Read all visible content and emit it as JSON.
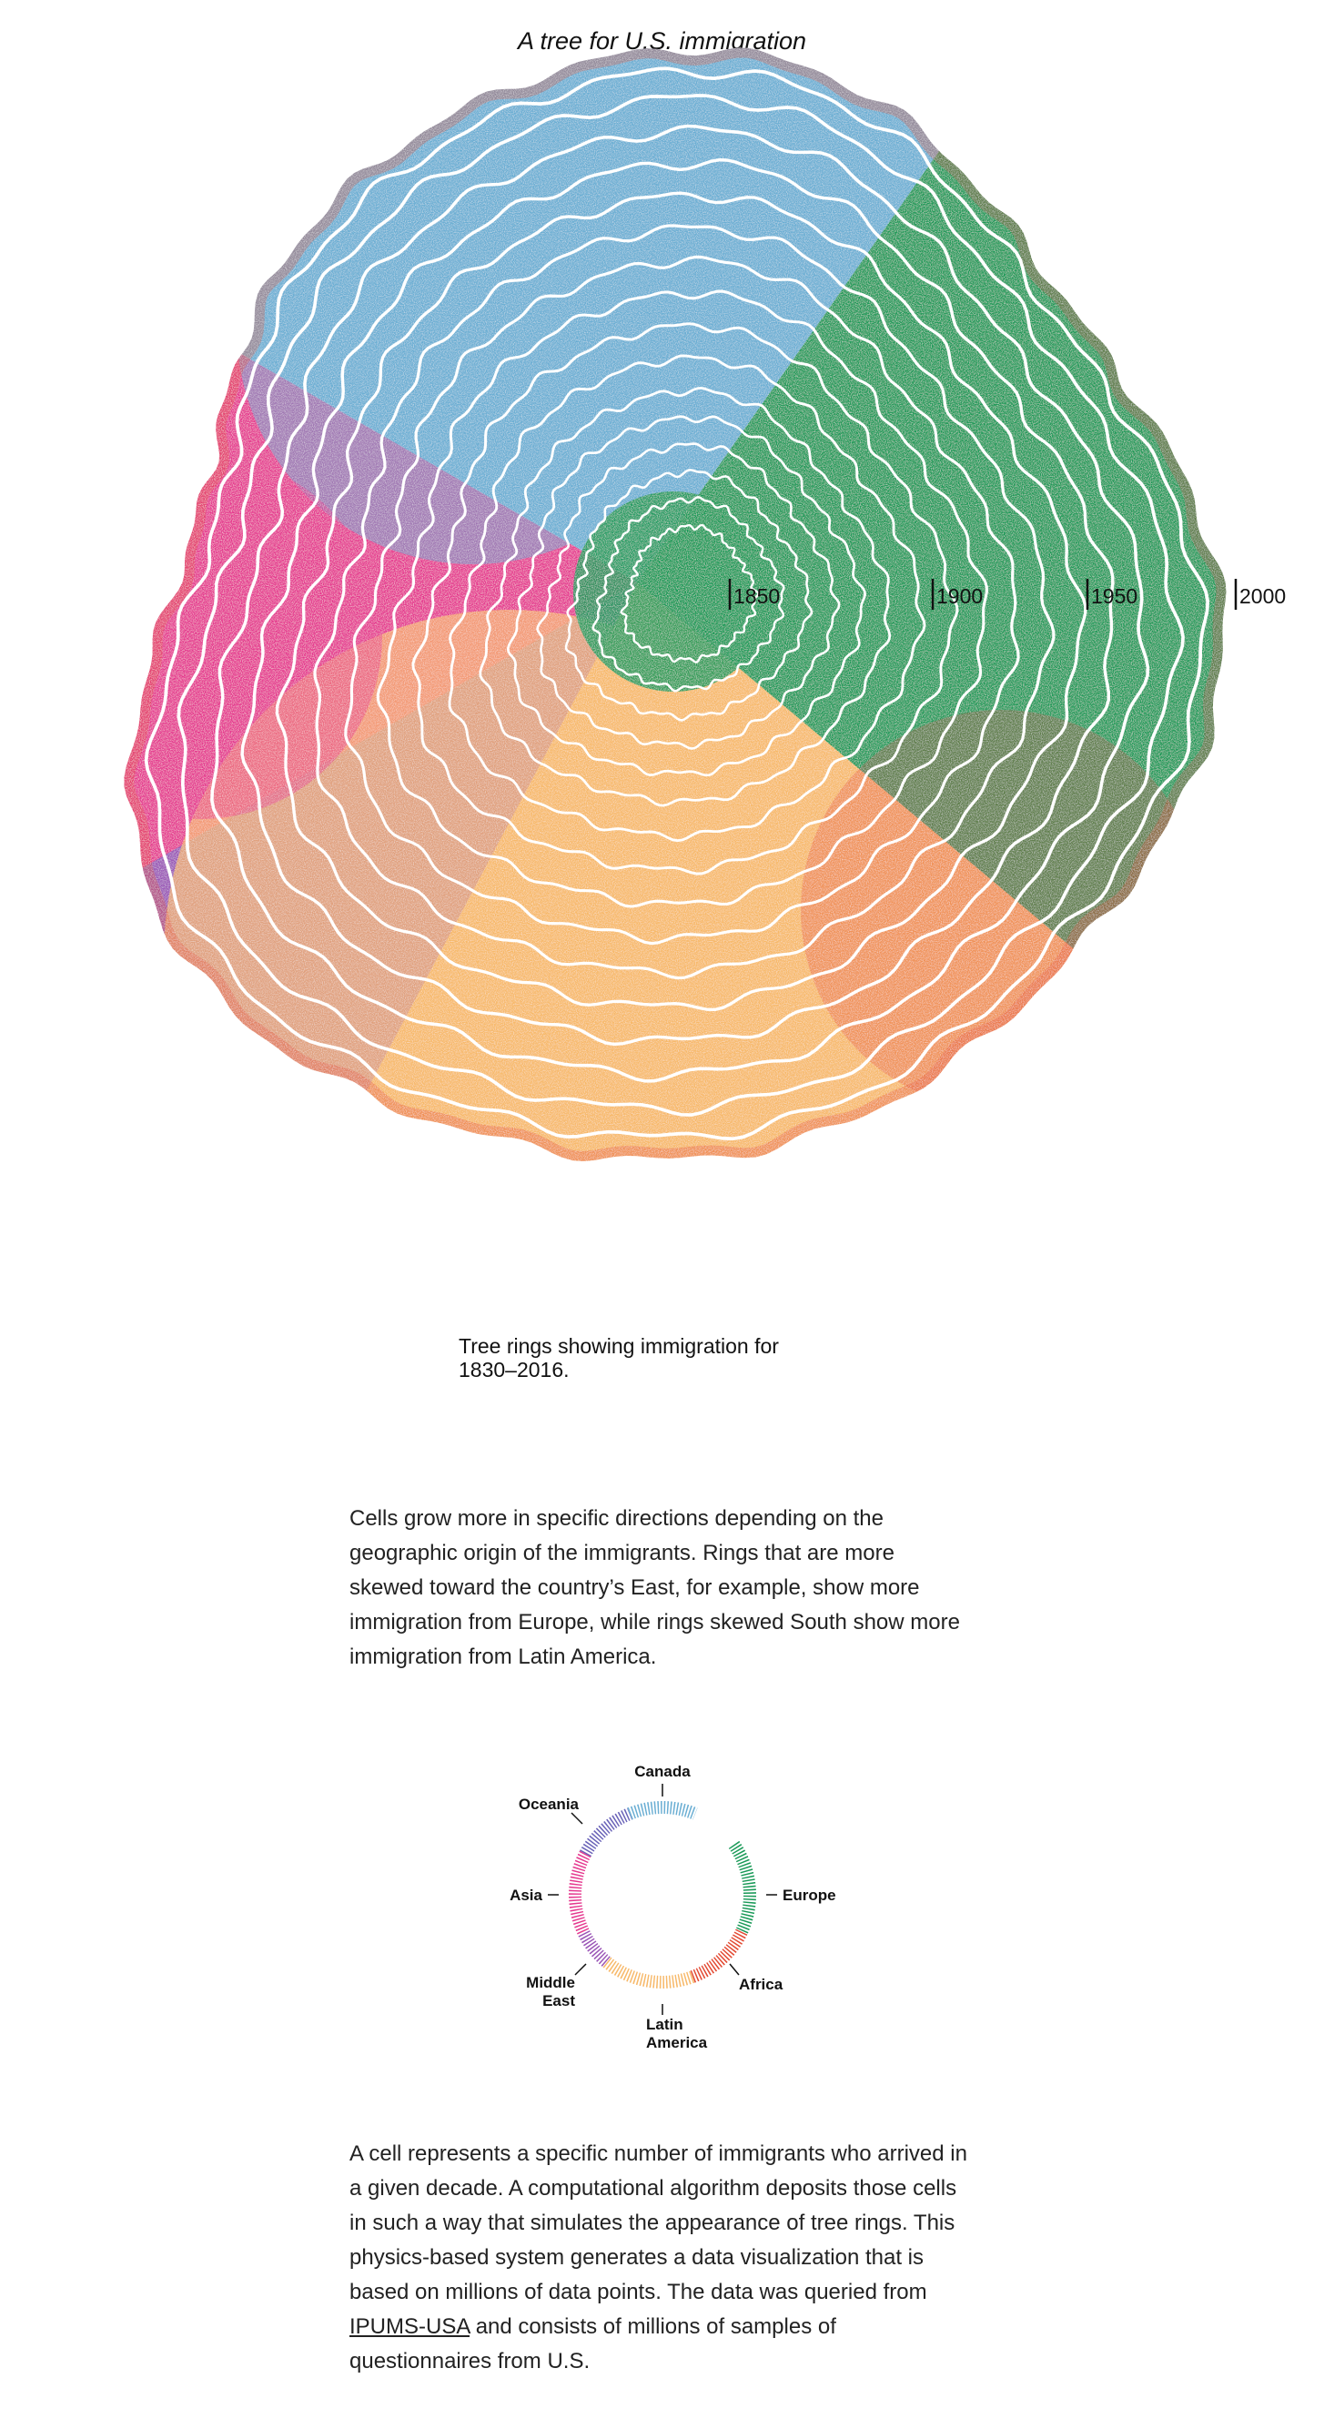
{
  "title": "A tree for U.S. immigration",
  "colors": {
    "europe": "#1a9a58",
    "canada": "#6aaed3",
    "oceania": "#6a63b8",
    "asia": "#e5398f",
    "middle_east": "#9a55b6",
    "latin_america": "#f7b96a",
    "africa": "#e34a33",
    "ring_line": "#ffffff"
  },
  "year_markers": [
    "1850",
    "1900",
    "1950",
    "2000"
  ],
  "caption": {
    "line1": "Tree rings showing immigration for",
    "line2": "1830–2016."
  },
  "paragraph1": "Cells grow more in specific directions depending on the geographic origin of the immigrants. Rings that are more skewed toward the country’s East, for example, show more immigration from Europe, while rings skewed South show more immigration from Latin America.",
  "legend": {
    "canada": "Canada",
    "oceania": "Oceania",
    "asia": "Asia",
    "middle_east_1": "Middle",
    "middle_east_2": "East",
    "latin_america_1": "Latin",
    "latin_america_2": "America",
    "africa": "Africa",
    "europe": "Europe"
  },
  "paragraph2": {
    "before_link": "A cell represents a specific number of immigrants who arrived in a given decade. A computational algorithm deposits those cells in such a way that simulates the appearance of tree rings. This physics-based system generates a data visualization that is based on millions of data points. The data was queried from ",
    "link": "IPUMS-USA",
    "after_link": " and consists of millions of samples of questionnaires from U.S."
  }
}
